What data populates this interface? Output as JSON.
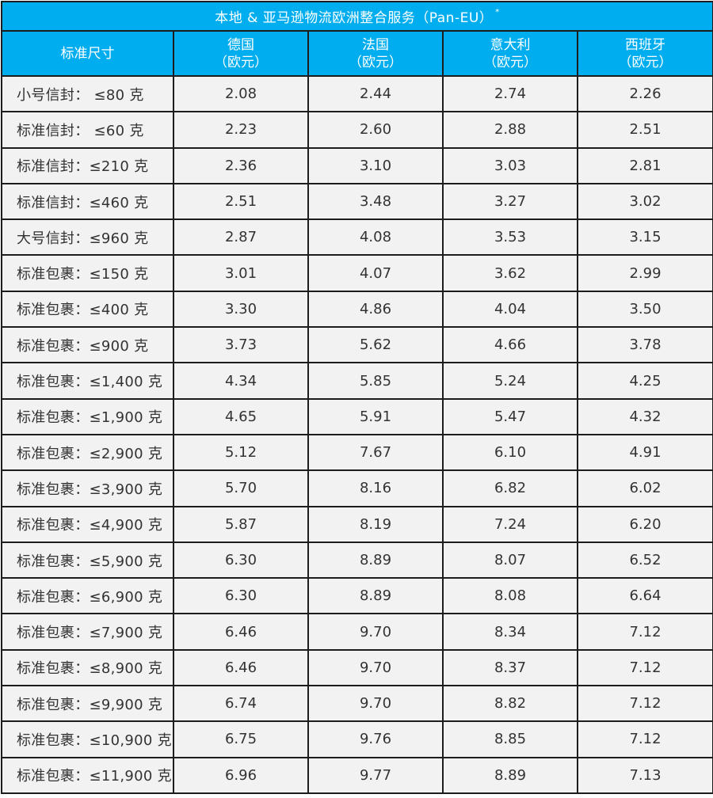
{
  "title": "本地 & 亚马逊物流欧洲整合服务（Pan-EU）",
  "title_mark": "*",
  "header": {
    "size_label": "标准尺寸",
    "columns": [
      {
        "name": "德国",
        "unit": "（欧元）"
      },
      {
        "name": "法国",
        "unit": "（欧元）"
      },
      {
        "name": "意大利",
        "unit": "（欧元）"
      },
      {
        "name": "西班牙",
        "unit": "（欧元）"
      }
    ]
  },
  "rows": [
    {
      "label": "小号信封： ≤80 克",
      "values": [
        "2.08",
        "2.44",
        "2.74",
        "2.26"
      ]
    },
    {
      "label": "标准信封： ≤60 克",
      "values": [
        "2.23",
        "2.60",
        "2.88",
        "2.51"
      ]
    },
    {
      "label": "标准信封：≤210 克",
      "values": [
        "2.36",
        "3.10",
        "3.03",
        "2.81"
      ]
    },
    {
      "label": "标准信封：≤460 克",
      "values": [
        "2.51",
        "3.48",
        "3.27",
        "3.02"
      ]
    },
    {
      "label": "大号信封：≤960 克",
      "values": [
        "2.87",
        "4.08",
        "3.53",
        "3.15"
      ]
    },
    {
      "label": "标准包裹：≤150 克",
      "values": [
        "3.01",
        "4.07",
        "3.62",
        "2.99"
      ]
    },
    {
      "label": "标准包裹：≤400 克",
      "values": [
        "3.30",
        "4.86",
        "4.04",
        "3.50"
      ]
    },
    {
      "label": "标准包裹：≤900 克",
      "values": [
        "3.73",
        "5.62",
        "4.66",
        "3.78"
      ]
    },
    {
      "label": "标准包裹：≤1,400 克",
      "values": [
        "4.34",
        "5.85",
        "5.24",
        "4.25"
      ]
    },
    {
      "label": "标准包裹：≤1,900 克",
      "values": [
        "4.65",
        "5.91",
        "5.47",
        "4.32"
      ]
    },
    {
      "label": "标准包裹：≤2,900 克",
      "values": [
        "5.12",
        "7.67",
        "6.10",
        "4.91"
      ]
    },
    {
      "label": "标准包裹：≤3,900 克",
      "values": [
        "5.70",
        "8.16",
        "6.82",
        "6.02"
      ]
    },
    {
      "label": "标准包裹：≤4,900 克",
      "values": [
        "5.87",
        "8.19",
        "7.24",
        "6.20"
      ]
    },
    {
      "label": "标准包裹：≤5,900 克",
      "values": [
        "6.30",
        "8.89",
        "8.07",
        "6.52"
      ]
    },
    {
      "label": "标准包裹：≤6,900 克",
      "values": [
        "6.30",
        "8.89",
        "8.08",
        "6.64"
      ]
    },
    {
      "label": "标准包裹：≤7,900 克",
      "values": [
        "6.46",
        "9.70",
        "8.34",
        "7.12"
      ]
    },
    {
      "label": "标准包裹：≤8,900 克",
      "values": [
        "6.46",
        "9.70",
        "8.37",
        "7.12"
      ]
    },
    {
      "label": "标准包裹：≤9,900 克",
      "values": [
        "6.74",
        "9.70",
        "8.82",
        "7.12"
      ]
    },
    {
      "label": "标准包裹：≤10,900 克",
      "values": [
        "6.75",
        "9.76",
        "8.85",
        "7.12"
      ]
    },
    {
      "label": "标准包裹：≤11,900 克",
      "values": [
        "6.96",
        "9.77",
        "8.89",
        "7.13"
      ]
    }
  ],
  "colors": {
    "header_bg": "#00adef",
    "header_text": "#ffffff",
    "cell_bg": "#f2f2f2",
    "border": "#1d1d1d"
  }
}
